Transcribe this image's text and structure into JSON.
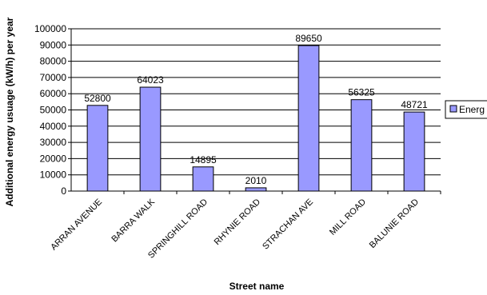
{
  "chart_data": {
    "type": "bar",
    "title": "",
    "xlabel": "Street name",
    "ylabel": "Additional energy usuage (kW/h) per year",
    "categories": [
      "ARRAN AVENUE",
      "BARRA WALK",
      "SPRINGHILL ROAD",
      "RHYNIE ROAD",
      "STRACHAN AVE",
      "MILL ROAD",
      "BALUNIE ROAD"
    ],
    "series": [
      {
        "name": "Energ",
        "values": [
          52800,
          64023,
          14895,
          2010,
          89650,
          56325,
          48721
        ],
        "data_labels": [
          "52800",
          "64023",
          "14895",
          "2010",
          "89650",
          "56325",
          "48721"
        ]
      }
    ],
    "ylim": [
      0,
      100000
    ],
    "yticks": [
      0,
      10000,
      20000,
      30000,
      40000,
      50000,
      60000,
      70000,
      80000,
      90000,
      100000
    ],
    "ytick_labels": [
      "0",
      "10000",
      "20000",
      "30000",
      "40000",
      "50000",
      "60000",
      "70000",
      "80000",
      "90000",
      "100000"
    ],
    "grid": true,
    "legend_position": "right",
    "colors": {
      "bar": "#9999ff",
      "bar_edge": "#000000",
      "grid": "#000000"
    }
  }
}
